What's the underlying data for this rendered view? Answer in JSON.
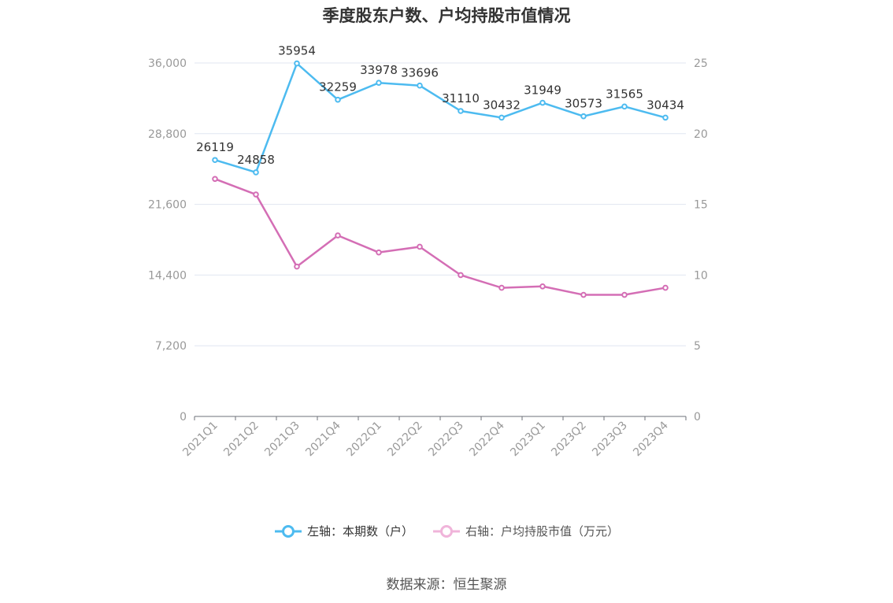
{
  "chart_data": {
    "type": "line",
    "title": "季度股东户数、户均持股市值情况",
    "categories": [
      "2021Q1",
      "2021Q2",
      "2021Q3",
      "2021Q4",
      "2022Q1",
      "2022Q2",
      "2022Q3",
      "2022Q4",
      "2023Q1",
      "2023Q2",
      "2023Q3",
      "2023Q4"
    ],
    "series": [
      {
        "name": "左轴：本期数（户）",
        "axis": "left",
        "color": "#4dbbf0",
        "values": [
          26119,
          24858,
          35954,
          32259,
          33978,
          33696,
          31110,
          30432,
          31949,
          30573,
          31565,
          30434
        ],
        "labels": [
          "26119",
          "24858",
          "35954",
          "32259",
          "33978",
          "33696",
          "31110",
          "30432",
          "31949",
          "30573",
          "31565",
          "30434"
        ]
      },
      {
        "name": "右轴：户均持股市值（万元）",
        "axis": "right",
        "color": "#d46eb5",
        "values": [
          16.8,
          15.7,
          10.6,
          12.8,
          11.6,
          12.0,
          10.0,
          9.1,
          9.2,
          8.6,
          8.6,
          9.1
        ]
      }
    ],
    "left_axis": {
      "ticks": [
        "0",
        "7,200",
        "14,400",
        "21,600",
        "28,800",
        "36,000"
      ],
      "ylim": [
        0,
        36000
      ]
    },
    "right_axis": {
      "ticks": [
        "0",
        "5",
        "10",
        "15",
        "20",
        "25"
      ],
      "ylim": [
        0,
        25
      ]
    },
    "grid": true,
    "legend_position": "bottom-center"
  },
  "legend": {
    "left_label": "左轴：本期数（户）",
    "right_label": "右轴：户均持股市值（万元）"
  },
  "source": "数据来源：恒生聚源"
}
